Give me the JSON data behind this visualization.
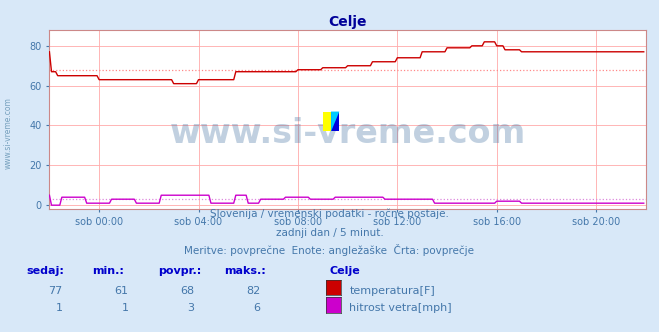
{
  "title": "Celje",
  "title_color": "#000099",
  "bg_color": "#d8e8f8",
  "plot_bg_color": "#ffffff",
  "grid_color": "#ffaaaa",
  "border_color": "#cc8888",
  "tick_color": "#4477aa",
  "ylabel_ticks": [
    0,
    20,
    40,
    60,
    80
  ],
  "ylim": [
    -2,
    88
  ],
  "xlim": [
    0,
    288
  ],
  "x_tick_positions": [
    24,
    72,
    120,
    168,
    216,
    264
  ],
  "x_tick_labels": [
    "sob 00:00",
    "sob 04:00",
    "sob 08:00",
    "sob 12:00",
    "sob 16:00",
    "sob 20:00"
  ],
  "temp_color": "#cc0000",
  "wind_color": "#cc00cc",
  "avg_temp_line": 68,
  "avg_wind_line": 3,
  "avg_temp_line_color": "#ff8888",
  "avg_wind_line_color": "#dd88dd",
  "watermark_text": "www.si-vreme.com",
  "watermark_color": "#336699",
  "watermark_alpha": 0.3,
  "watermark_fontsize": 24,
  "footer_line1": "Slovenija / vremenski podatki - ročne postaje.",
  "footer_line2": "zadnji dan / 5 minut.",
  "footer_line3": "Meritve: povprečne  Enote: angležaške  Črta: povprečje",
  "footer_color": "#4477aa",
  "footer_fontsize": 7.5,
  "legend_title": "Celje",
  "legend_label1": "temperatura[F]",
  "legend_label2": "hitrost vetra[mph]",
  "legend_color1": "#cc0000",
  "legend_color2": "#cc00cc",
  "table_headers": [
    "sedaj:",
    "min.:",
    "povpr.:",
    "maks.:"
  ],
  "table_row1": [
    "77",
    "61",
    "68",
    "82"
  ],
  "table_row2": [
    "1",
    "1",
    "3",
    "6"
  ],
  "table_color": "#0000cc",
  "table_fontsize": 8,
  "sidebar_text": "www.si-vreme.com",
  "sidebar_color": "#5588aa",
  "sidebar_fontsize": 5.5,
  "icon_yellow": "#ffff00",
  "icon_blue": "#0000dd",
  "icon_cyan": "#00ccff"
}
